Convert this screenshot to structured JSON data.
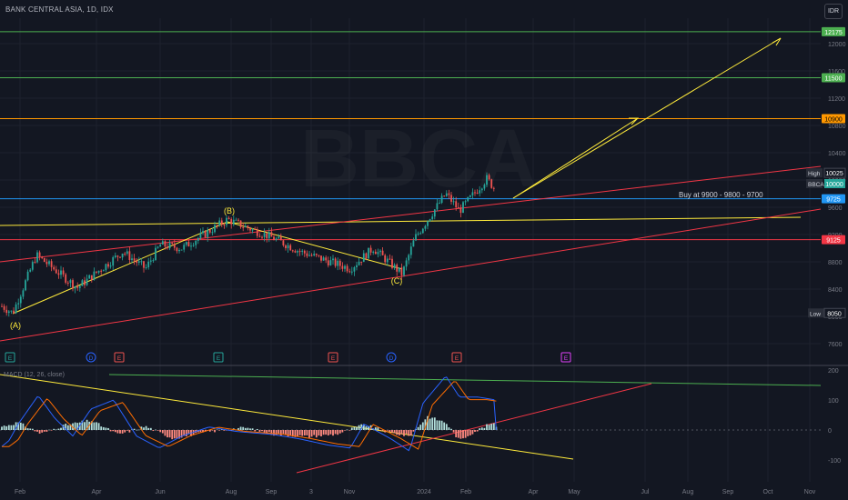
{
  "header": {
    "symbol_title": "BANK CENTRAL ASIA, 1D, IDX",
    "currency": "IDR"
  },
  "colors": {
    "background": "#131722",
    "up_candle": "#26a69a",
    "down_candle": "#ef5350",
    "grid": "#1e222d",
    "macd_line": "#2962ff",
    "signal_line": "#ff6d00",
    "trend_yellow": "#ffeb3b",
    "trend_red": "#f23645"
  },
  "chart_data": [
    {
      "type": "candlestick",
      "title": "BANK CENTRAL ASIA, 1D, IDX",
      "y_ticks": [
        7600,
        8000,
        8400,
        8800,
        9200,
        9600,
        10000,
        10400,
        10800,
        11200,
        11600,
        12000
      ],
      "x_ticks": [
        "Feb",
        "Apr",
        "Jun",
        "Aug",
        "Sep",
        "3",
        "Nov",
        "2024",
        "Feb",
        "Apr",
        "May",
        "Jul",
        "Aug",
        "Sep",
        "Oct",
        "Nov"
      ],
      "ylim": [
        7300,
        12300
      ],
      "price_levels": [
        {
          "label": "12175",
          "value": 12175,
          "color": "#4caf50"
        },
        {
          "label": "11500",
          "value": 11500,
          "color": "#4caf50"
        },
        {
          "label": "10900",
          "value": 10900,
          "color": "#ff9800"
        },
        {
          "label": "9725",
          "value": 9725,
          "color": "#2196f3"
        },
        {
          "label": "9125",
          "value": 9125,
          "color": "#f23645"
        }
      ],
      "markers": [
        {
          "label": "High",
          "value": 10025
        },
        {
          "label": "BBCA",
          "value": 10000
        },
        {
          "label": "Low",
          "value": 8050
        }
      ],
      "annotations": [
        "(A)",
        "(B)",
        "(C)",
        "Buy at 9900 - 9800 - 9700"
      ],
      "event_icons": [
        "E",
        "D",
        "E",
        "E",
        "E",
        "D",
        "E",
        "E"
      ],
      "watermark": "BBCA"
    },
    {
      "type": "bar",
      "title": "MACD (12, 26, close)",
      "y_ticks": [
        200,
        100,
        0,
        -100
      ],
      "ylim": [
        -130,
        210
      ]
    }
  ]
}
